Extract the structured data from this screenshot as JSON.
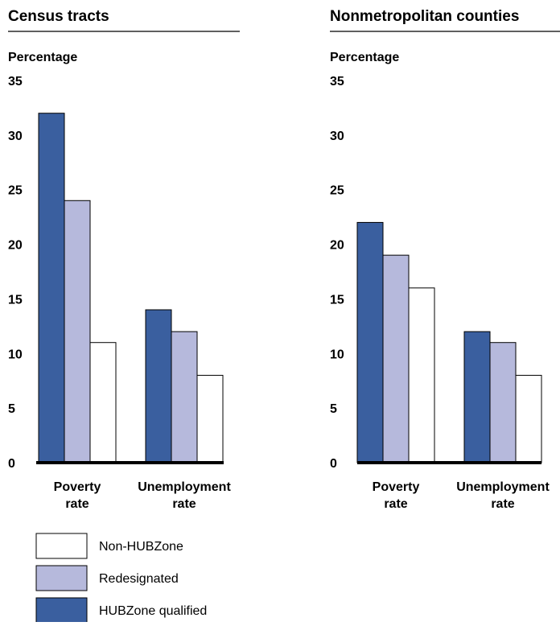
{
  "chart_data": [
    {
      "type": "bar",
      "title": "Census tracts",
      "ylabel": "Percentage",
      "ylim": [
        0,
        35
      ],
      "yticks": [
        0,
        5,
        10,
        15,
        20,
        25,
        30,
        35
      ],
      "categories": [
        [
          "Poverty",
          "rate"
        ],
        [
          "Unemployment",
          "rate"
        ]
      ],
      "series": [
        {
          "name": "HUBZone qualified",
          "values": [
            32,
            14
          ]
        },
        {
          "name": "Redesignated",
          "values": [
            24,
            12
          ]
        },
        {
          "name": "Non-HUBZone",
          "values": [
            11,
            8
          ]
        }
      ]
    },
    {
      "type": "bar",
      "title": "Nonmetropolitan counties",
      "ylabel": "Percentage",
      "ylim": [
        0,
        35
      ],
      "yticks": [
        0,
        5,
        10,
        15,
        20,
        25,
        30,
        35
      ],
      "categories": [
        [
          "Poverty",
          "rate"
        ],
        [
          "Unemployment",
          "rate"
        ]
      ],
      "series": [
        {
          "name": "HUBZone qualified",
          "values": [
            22,
            12
          ]
        },
        {
          "name": "Redesignated",
          "values": [
            19,
            11
          ]
        },
        {
          "name": "Non-HUBZone",
          "values": [
            16,
            8
          ]
        }
      ]
    }
  ],
  "legend": [
    "Non-HUBZone",
    "Redesignated",
    "HUBZone qualified"
  ],
  "colors": {
    "HUBZone qualified": "#3a5f9f",
    "Redesignated": "#b6b9dc",
    "Non-HUBZone": "#ffffff",
    "outline": "#000000"
  }
}
